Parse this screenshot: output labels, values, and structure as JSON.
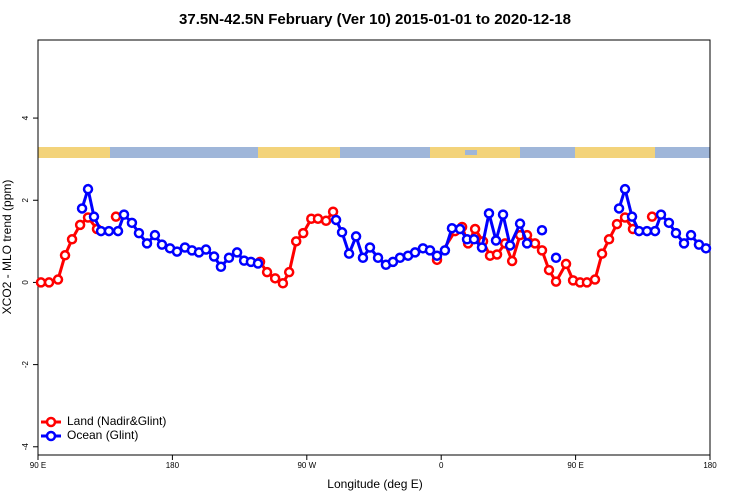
{
  "chart_data": {
    "type": "line",
    "title": "37.5N-42.5N February (Ver 10)   2015-01-01 to 2020-12-18",
    "x_label": "Longitude (deg E)",
    "y_label": "XCO2 - MLO trend (ppm)",
    "xlim": [
      90,
      540
    ],
    "ylim": [
      -4.2,
      5.9
    ],
    "xticks": [
      {
        "value": 90,
        "label": "90 E"
      },
      180,
      {
        "value": 270,
        "label": "90 W"
      },
      {
        "value": 360,
        "label": "0"
      },
      {
        "value": 450,
        "label": "90 E"
      },
      {
        "value": 540,
        "label": "180"
      }
    ],
    "yticks": [
      4,
      2,
      0,
      -2,
      -4
    ],
    "legend": "bottom-left",
    "series": [
      {
        "name": "Land (Nadir&Glint)",
        "color": "#ff0000",
        "x": [
          92,
          97.4,
          103.4,
          108.1,
          112.8,
          118.2,
          123.5,
          129.5,
          null,
          142.2,
          null,
          238.7,
          243.4,
          248.8,
          254,
          258.2,
          262.9,
          267.6,
          273,
          277.5,
          282.9,
          287.6,
          null,
          357.2,
          369.3,
          374,
          378,
          382.7,
          388,
          392.7,
          397.4,
          402.8,
          407.5,
          412.8,
          417.5,
          422.8,
          427.5,
          432.2,
          436.9,
          443.6,
          448.3,
          453,
          457.6,
          463,
          467.7,
          472.4,
          477.7,
          483.1,
          488.4,
          null,
          501.2
        ],
        "values": [
          0,
          0,
          0.07,
          0.66,
          1.05,
          1.4,
          1.58,
          1.3,
          null,
          1.6,
          null,
          0.5,
          0.25,
          0.1,
          -0.02,
          0.25,
          1,
          1.2,
          1.55,
          1.55,
          1.5,
          1.72,
          null,
          0.55,
          1.25,
          1.35,
          0.95,
          1.3,
          1,
          0.65,
          0.68,
          0.95,
          0.52,
          1.15,
          1.15,
          0.95,
          0.78,
          0.3,
          0.02,
          0.45,
          0.05,
          0,
          0,
          0.07,
          0.7,
          1.05,
          1.42,
          1.58,
          1.3,
          null,
          1.6
        ]
      },
      {
        "name": "Ocean (Glint)",
        "color": "#0000ff",
        "x": [
          119.5,
          123.5,
          127.5,
          132.2,
          137.5,
          143.6,
          147.6,
          152.9,
          157.6,
          163,
          168.3,
          173,
          178.4,
          183.1,
          188.4,
          193.1,
          197.8,
          202.5,
          207.9,
          212.5,
          217.9,
          223.3,
          228,
          232.6,
          237.3,
          null,
          289.6,
          293.6,
          298.3,
          303,
          307.6,
          312.3,
          317.7,
          323,
          327.7,
          332.4,
          337.8,
          342.5,
          347.8,
          352.5,
          357.2,
          362.5,
          367.2,
          372.6,
          377.3,
          382,
          387.3,
          392,
          396.7,
          401.4,
          406.1,
          412.8,
          417.5,
          null,
          427.5,
          null,
          436.9,
          null,
          479.1,
          483.1,
          487.8,
          492.5,
          497.8,
          503.2,
          507.2,
          512.5,
          517.2,
          522.6,
          527.3,
          532.6,
          537.3
        ],
        "values": [
          1.8,
          2.27,
          1.6,
          1.25,
          1.25,
          1.25,
          1.65,
          1.45,
          1.2,
          0.95,
          1.15,
          0.92,
          0.83,
          0.75,
          0.85,
          0.78,
          0.73,
          0.8,
          0.63,
          0.38,
          0.6,
          0.73,
          0.53,
          0.5,
          0.46,
          null,
          1.52,
          1.22,
          0.7,
          1.12,
          0.6,
          0.85,
          0.6,
          0.43,
          0.5,
          0.6,
          0.65,
          0.73,
          0.83,
          0.78,
          0.65,
          0.78,
          1.32,
          1.3,
          1.05,
          1.05,
          0.85,
          1.68,
          1.02,
          1.65,
          0.9,
          1.43,
          0.95,
          null,
          1.27,
          null,
          0.6,
          null,
          1.8,
          2.27,
          1.6,
          1.25,
          1.25,
          1.25,
          1.65,
          1.45,
          1.2,
          0.95,
          1.15,
          0.92,
          0.83
        ]
      }
    ]
  }
}
